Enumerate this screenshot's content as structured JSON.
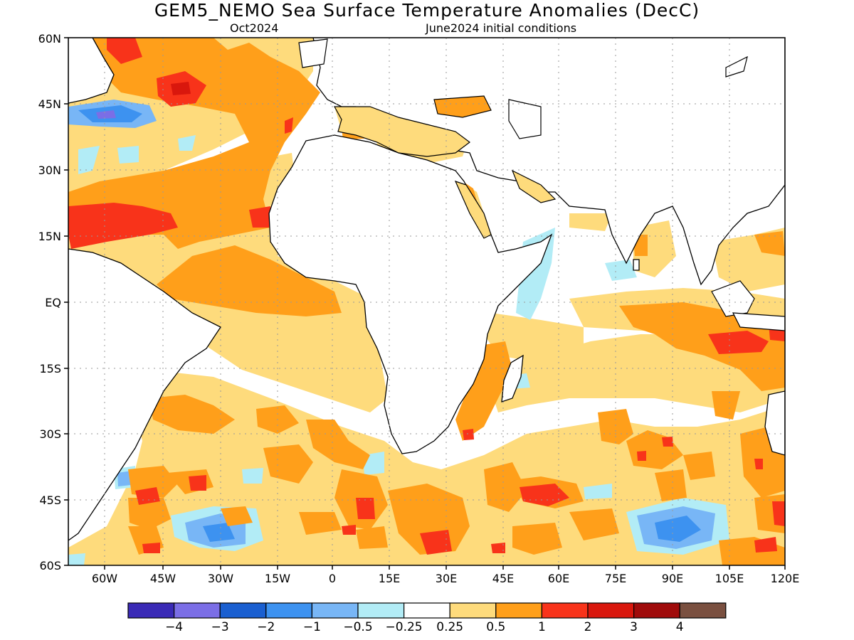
{
  "title": "GEM5_NEMO Sea Surface Temperature Anomalies (DecC)",
  "subtitle_left": "Oct2024",
  "subtitle_right": "June2024 initial conditions",
  "lat_labels": [
    "60N",
    "45N",
    "30N",
    "15N",
    "EQ",
    "15S",
    "30S",
    "45S",
    "60S"
  ],
  "lon_labels": [
    "60W",
    "45W",
    "30W",
    "15W",
    "0",
    "15E",
    "30E",
    "45E",
    "60E",
    "75E",
    "90E",
    "105E",
    "120E"
  ],
  "colorbar": {
    "labels": [
      "−4",
      "−3",
      "−2",
      "−1",
      "−0.5",
      "−0.25",
      "0.25",
      "0.5",
      "1",
      "2",
      "3",
      "4"
    ],
    "colors": [
      "#3a2ab6",
      "#7b6ee6",
      "#1a5fd0",
      "#3d92f0",
      "#78b6f6",
      "#b2ecf6",
      "#ffffff",
      "#fedb7c",
      "#ff9f1a",
      "#f8331a",
      "#d9170d",
      "#a00b0b",
      "#7a5040"
    ]
  },
  "map": {
    "region": "Atlantic and Indian Ocean, 70W to 120E, 60S to 60N",
    "grid": "dotted",
    "colors": {
      "neutral": "#ffffff",
      "weak_warm": "#fedb7c",
      "warm": "#ff9f1a",
      "strong_warm": "#f8331a",
      "weak_cool": "#b2ecf6",
      "cool": "#78b6f6",
      "cooler": "#3d92f0",
      "coolest": "#7b6ee6"
    }
  }
}
